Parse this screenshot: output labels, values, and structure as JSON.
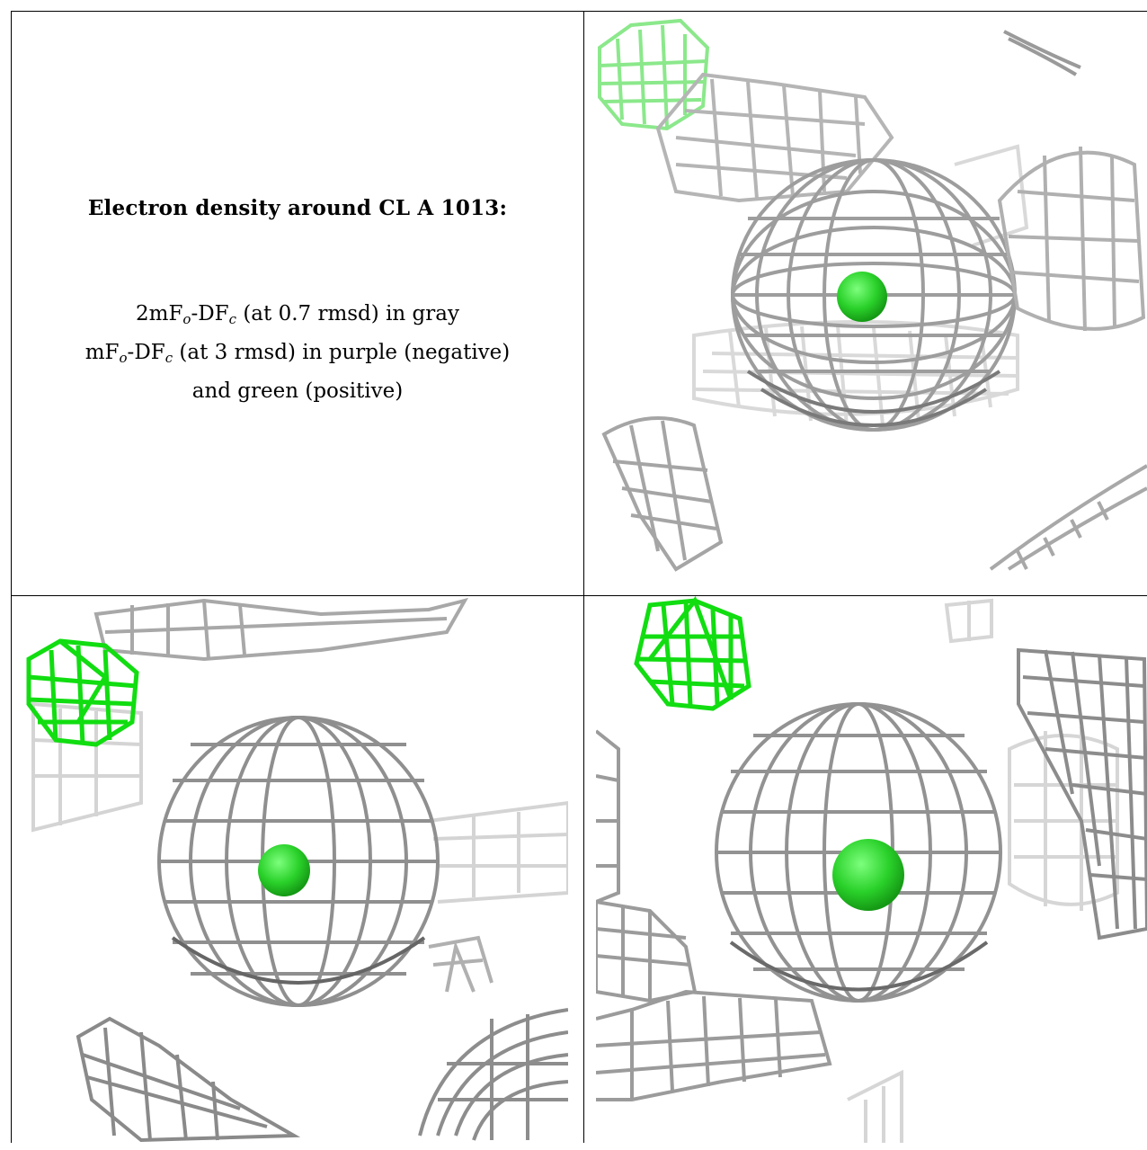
{
  "caption": {
    "title": "Electron density around CL A 1013:",
    "line1": {
      "pre": "2mF",
      "sub1": "o",
      "mid": "-DF",
      "sub2": "c",
      "post": " (at 0.7 rmsd) in gray"
    },
    "line2": {
      "pre": "mF",
      "sub1": "o",
      "mid": "-DF",
      "sub2": "c",
      "post": " (at 3 rmsd) in purple (negative)"
    },
    "line3": "and green (positive)"
  },
  "colors": {
    "mesh_gray": "#a9a9a9",
    "mesh_dark": "#6e6e6e",
    "mesh_light": "#d6d6d6",
    "positive_green": "#22e622",
    "atom_green": "#33cc33"
  },
  "panels": [
    {
      "view": "top-right",
      "icon": "density-mesh-icon"
    },
    {
      "view": "bottom-left",
      "icon": "density-mesh-icon"
    },
    {
      "view": "bottom-right",
      "icon": "density-mesh-icon"
    }
  ]
}
